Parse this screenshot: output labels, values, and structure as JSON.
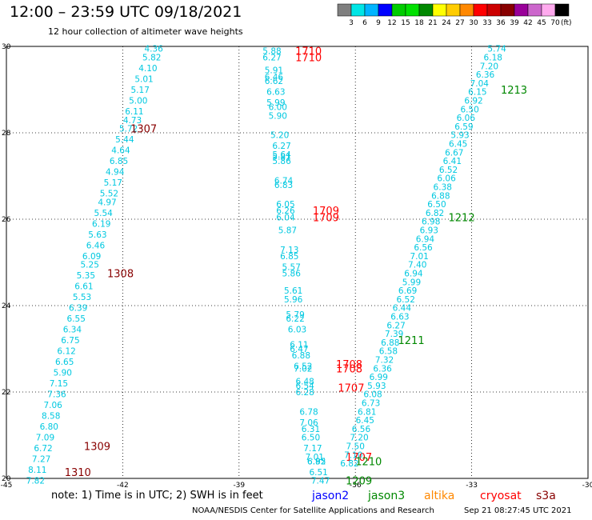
{
  "header": {
    "title": "12:00 – 23:59 UTC 09/18/2021",
    "subtitle": "12 hour collection of altimeter wave heights"
  },
  "colorbar": {
    "unit": "(ft)",
    "bins": [
      {
        "color": "#7f7f7f",
        "label": "3"
      },
      {
        "color": "#00e5e5",
        "label": "6"
      },
      {
        "color": "#00b4ff",
        "label": "9"
      },
      {
        "color": "#0000ff",
        "label": "12"
      },
      {
        "color": "#00cc00",
        "label": "15"
      },
      {
        "color": "#00e000",
        "label": "18"
      },
      {
        "color": "#008800",
        "label": "21"
      },
      {
        "color": "#ffff00",
        "label": "24"
      },
      {
        "color": "#ffcc00",
        "label": "27"
      },
      {
        "color": "#ff8800",
        "label": "30"
      },
      {
        "color": "#ff0000",
        "label": "33"
      },
      {
        "color": "#cc0000",
        "label": "36"
      },
      {
        "color": "#880000",
        "label": "39"
      },
      {
        "color": "#990099",
        "label": "42"
      },
      {
        "color": "#cc66cc",
        "label": "45"
      },
      {
        "color": "#ffaaee",
        "label": "70"
      },
      {
        "color": "#000000",
        "label": ""
      }
    ]
  },
  "footer": {
    "note": "note: 1) Time is in UTC; 2) SWH is in feet",
    "legend": [
      {
        "name": "jason2",
        "color": "#0000ff"
      },
      {
        "name": "jason3",
        "color": "#008800"
      },
      {
        "name": "altika",
        "color": "#ff8800"
      },
      {
        "name": "cryosat",
        "color": "#ff0000"
      },
      {
        "name": "s3a",
        "color": "#880000"
      }
    ],
    "credit": "NOAA/NESDIS Center for Satellite Applications and Research",
    "timestamp": "Sep 21 08:27:45 UTC 2021"
  },
  "chart_data": {
    "type": "scatter",
    "xlim": [
      -45,
      -30
    ],
    "ylim": [
      20,
      30
    ],
    "xticks": [
      "-45",
      "-42",
      "-39",
      "-36",
      "-33",
      "-30"
    ],
    "yticks": [
      "20",
      "22",
      "24",
      "26",
      "28",
      "30"
    ],
    "grid": true,
    "value_color": "#00c8e0",
    "tracks": [
      {
        "name": "s3a",
        "color": "#880000",
        "time_labels": [
          {
            "text": "1307",
            "x": -41.8,
            "y": 28.1
          },
          {
            "text": "1308",
            "x": -42.4,
            "y": 24.75
          },
          {
            "text": "1309",
            "x": -43.0,
            "y": 20.75
          },
          {
            "text": "1310",
            "x": -43.5,
            "y": 20.15
          }
        ],
        "points": [
          {
            "x": -41.2,
            "y": 29.95,
            "v": "4.36"
          },
          {
            "x": -41.25,
            "y": 29.75,
            "v": "5.82"
          },
          {
            "x": -41.35,
            "y": 29.5,
            "v": "4.10"
          },
          {
            "x": -41.45,
            "y": 29.25,
            "v": "5.01"
          },
          {
            "x": -41.55,
            "y": 29.0,
            "v": "5.17"
          },
          {
            "x": -41.6,
            "y": 28.75,
            "v": "5.00"
          },
          {
            "x": -41.7,
            "y": 28.5,
            "v": "6.11"
          },
          {
            "x": -41.75,
            "y": 28.3,
            "v": "4.73"
          },
          {
            "x": -41.85,
            "y": 28.1,
            "v": "5.72"
          },
          {
            "x": -41.95,
            "y": 27.85,
            "v": "5.44"
          },
          {
            "x": -42.05,
            "y": 27.6,
            "v": "4.64"
          },
          {
            "x": -42.1,
            "y": 27.35,
            "v": "6.85"
          },
          {
            "x": -42.2,
            "y": 27.1,
            "v": "4.94"
          },
          {
            "x": -42.25,
            "y": 26.85,
            "v": "5.17"
          },
          {
            "x": -42.35,
            "y": 26.6,
            "v": "5.52"
          },
          {
            "x": -42.4,
            "y": 26.4,
            "v": "4.97"
          },
          {
            "x": -42.5,
            "y": 26.15,
            "v": "5.54"
          },
          {
            "x": -42.55,
            "y": 25.9,
            "v": "6.19"
          },
          {
            "x": -42.65,
            "y": 25.65,
            "v": "5.63"
          },
          {
            "x": -42.7,
            "y": 25.4,
            "v": "6.46"
          },
          {
            "x": -42.8,
            "y": 25.15,
            "v": "6.09"
          },
          {
            "x": -42.85,
            "y": 24.95,
            "v": "5.25"
          },
          {
            "x": -42.95,
            "y": 24.7,
            "v": "5.35"
          },
          {
            "x": -43.0,
            "y": 24.45,
            "v": "6.61"
          },
          {
            "x": -43.05,
            "y": 24.2,
            "v": "5.53"
          },
          {
            "x": -43.15,
            "y": 23.95,
            "v": "6.39"
          },
          {
            "x": -43.2,
            "y": 23.7,
            "v": "6.55"
          },
          {
            "x": -43.3,
            "y": 23.45,
            "v": "6.34"
          },
          {
            "x": -43.35,
            "y": 23.2,
            "v": "6.75"
          },
          {
            "x": -43.45,
            "y": 22.95,
            "v": "6.12"
          },
          {
            "x": -43.5,
            "y": 22.7,
            "v": "6.65"
          },
          {
            "x": -43.55,
            "y": 22.45,
            "v": "5.90"
          },
          {
            "x": -43.65,
            "y": 22.2,
            "v": "7.15"
          },
          {
            "x": -43.7,
            "y": 21.95,
            "v": "7.36"
          },
          {
            "x": -43.8,
            "y": 21.7,
            "v": "7.06"
          },
          {
            "x": -43.85,
            "y": 21.45,
            "v": "8.58"
          },
          {
            "x": -43.9,
            "y": 21.2,
            "v": "6.80"
          },
          {
            "x": -44.0,
            "y": 20.95,
            "v": "7.09"
          },
          {
            "x": -44.05,
            "y": 20.7,
            "v": "6.72"
          },
          {
            "x": -44.1,
            "y": 20.45,
            "v": "7.27"
          },
          {
            "x": -44.2,
            "y": 20.2,
            "v": "8.11"
          },
          {
            "x": -44.25,
            "y": 19.95,
            "v": "7.82"
          }
        ]
      },
      {
        "name": "cryosat",
        "color": "#ff0000",
        "time_labels": [
          {
            "text": "1710",
            "x": -37.55,
            "y": 29.9
          },
          {
            "text": "1710",
            "x": -37.55,
            "y": 29.75
          },
          {
            "text": "1709",
            "x": -37.1,
            "y": 26.2
          },
          {
            "text": "1709",
            "x": -37.1,
            "y": 26.05
          },
          {
            "text": "1708",
            "x": -36.5,
            "y": 22.65
          },
          {
            "text": "1708",
            "x": -36.5,
            "y": 22.55
          },
          {
            "text": "1707",
            "x": -36.45,
            "y": 22.1
          },
          {
            "text": "1707",
            "x": -36.25,
            "y": 20.5
          }
        ],
        "points": [
          {
            "x": -38.15,
            "y": 29.9,
            "v": "5.88"
          },
          {
            "x": -38.15,
            "y": 29.75,
            "v": "6.27"
          },
          {
            "x": -38.1,
            "y": 29.45,
            "v": "5.91"
          },
          {
            "x": -38.1,
            "y": 29.3,
            "v": "6.46"
          },
          {
            "x": -38.1,
            "y": 29.2,
            "v": "6.62"
          },
          {
            "x": -38.05,
            "y": 28.95,
            "v": "6.63"
          },
          {
            "x": -38.05,
            "y": 28.7,
            "v": "5.99"
          },
          {
            "x": -38.0,
            "y": 28.6,
            "v": "6.00"
          },
          {
            "x": -38.0,
            "y": 28.4,
            "v": "5.90"
          },
          {
            "x": -37.95,
            "y": 27.95,
            "v": "5.20"
          },
          {
            "x": -37.9,
            "y": 27.7,
            "v": "6.27"
          },
          {
            "x": -37.9,
            "y": 27.5,
            "v": "5.64"
          },
          {
            "x": -37.9,
            "y": 27.45,
            "v": "5.81"
          },
          {
            "x": -37.9,
            "y": 27.35,
            "v": "5.86"
          },
          {
            "x": -37.85,
            "y": 26.9,
            "v": "6.74"
          },
          {
            "x": -37.85,
            "y": 26.8,
            "v": "6.83"
          },
          {
            "x": -37.8,
            "y": 26.35,
            "v": "6.05"
          },
          {
            "x": -37.8,
            "y": 26.2,
            "v": "6.26"
          },
          {
            "x": -37.8,
            "y": 26.05,
            "v": "6.04"
          },
          {
            "x": -37.75,
            "y": 25.75,
            "v": "5.87"
          },
          {
            "x": -37.7,
            "y": 25.3,
            "v": "7.13"
          },
          {
            "x": -37.7,
            "y": 25.15,
            "v": "6.85"
          },
          {
            "x": -37.65,
            "y": 24.9,
            "v": "5.57"
          },
          {
            "x": -37.65,
            "y": 24.75,
            "v": "5.86"
          },
          {
            "x": -37.6,
            "y": 24.35,
            "v": "5.61"
          },
          {
            "x": -37.6,
            "y": 24.15,
            "v": "5.96"
          },
          {
            "x": -37.55,
            "y": 23.8,
            "v": "5.79"
          },
          {
            "x": -37.55,
            "y": 23.7,
            "v": "6.22"
          },
          {
            "x": -37.5,
            "y": 23.45,
            "v": "6.03"
          },
          {
            "x": -37.45,
            "y": 23.1,
            "v": "6.11"
          },
          {
            "x": -37.45,
            "y": 23.0,
            "v": "6.47"
          },
          {
            "x": -37.4,
            "y": 22.85,
            "v": "6.88"
          },
          {
            "x": -37.35,
            "y": 22.6,
            "v": "6.52"
          },
          {
            "x": -37.35,
            "y": 22.55,
            "v": "7.02"
          },
          {
            "x": -37.3,
            "y": 22.25,
            "v": "6.48"
          },
          {
            "x": -37.3,
            "y": 22.15,
            "v": "6.54"
          },
          {
            "x": -37.3,
            "y": 22.0,
            "v": "6.28"
          },
          {
            "x": -37.2,
            "y": 21.55,
            "v": "6.78"
          },
          {
            "x": -37.2,
            "y": 21.3,
            "v": "7.06"
          },
          {
            "x": -37.15,
            "y": 21.15,
            "v": "6.31"
          },
          {
            "x": -37.15,
            "y": 20.95,
            "v": "6.50"
          },
          {
            "x": -37.1,
            "y": 20.7,
            "v": "7.17"
          },
          {
            "x": -37.05,
            "y": 20.5,
            "v": "7.01"
          },
          {
            "x": -37.0,
            "y": 20.4,
            "v": "6.92"
          },
          {
            "x": -37.0,
            "y": 20.4,
            "v": "6.85"
          },
          {
            "x": -36.95,
            "y": 20.15,
            "v": "6.51"
          },
          {
            "x": -36.9,
            "y": 19.95,
            "v": "7.47"
          }
        ]
      },
      {
        "name": "jason3",
        "color": "#008800",
        "time_labels": [
          {
            "text": "1213",
            "x": -32.25,
            "y": 29.0
          },
          {
            "text": "1212",
            "x": -33.6,
            "y": 26.05
          },
          {
            "text": "1211",
            "x": -34.9,
            "y": 23.2
          },
          {
            "text": "1210",
            "x": -36.0,
            "y": 20.4
          },
          {
            "text": "1209",
            "x": -36.25,
            "y": 19.95
          }
        ],
        "points": [
          {
            "x": -32.35,
            "y": 29.95,
            "v": "5.74"
          },
          {
            "x": -32.45,
            "y": 29.75,
            "v": "6.18"
          },
          {
            "x": -32.55,
            "y": 29.55,
            "v": "7.20"
          },
          {
            "x": -32.65,
            "y": 29.35,
            "v": "6.36"
          },
          {
            "x": -32.8,
            "y": 29.15,
            "v": "7.04"
          },
          {
            "x": -32.85,
            "y": 28.95,
            "v": "6.15"
          },
          {
            "x": -32.95,
            "y": 28.75,
            "v": "6.92"
          },
          {
            "x": -33.05,
            "y": 28.55,
            "v": "6.50"
          },
          {
            "x": -33.15,
            "y": 28.35,
            "v": "6.06"
          },
          {
            "x": -33.2,
            "y": 28.15,
            "v": "6.59"
          },
          {
            "x": -33.3,
            "y": 27.95,
            "v": "5.93"
          },
          {
            "x": -33.35,
            "y": 27.75,
            "v": "6.45"
          },
          {
            "x": -33.45,
            "y": 27.55,
            "v": "6.67"
          },
          {
            "x": -33.5,
            "y": 27.35,
            "v": "6.41"
          },
          {
            "x": -33.6,
            "y": 27.15,
            "v": "6.52"
          },
          {
            "x": -33.65,
            "y": 26.95,
            "v": "6.06"
          },
          {
            "x": -33.75,
            "y": 26.75,
            "v": "6.38"
          },
          {
            "x": -33.8,
            "y": 26.55,
            "v": "6.88"
          },
          {
            "x": -33.9,
            "y": 26.35,
            "v": "6.50"
          },
          {
            "x": -33.95,
            "y": 26.15,
            "v": "6.82"
          },
          {
            "x": -34.05,
            "y": 25.95,
            "v": "6.98"
          },
          {
            "x": -34.1,
            "y": 25.75,
            "v": "6.93"
          },
          {
            "x": -34.2,
            "y": 25.55,
            "v": "6.94"
          },
          {
            "x": -34.25,
            "y": 25.35,
            "v": "6.56"
          },
          {
            "x": -34.35,
            "y": 25.15,
            "v": "7.01"
          },
          {
            "x": -34.4,
            "y": 24.95,
            "v": "7.40"
          },
          {
            "x": -34.5,
            "y": 24.75,
            "v": "6.94"
          },
          {
            "x": -34.55,
            "y": 24.55,
            "v": "5.99"
          },
          {
            "x": -34.65,
            "y": 24.35,
            "v": "6.69"
          },
          {
            "x": -34.7,
            "y": 24.15,
            "v": "6.52"
          },
          {
            "x": -34.8,
            "y": 23.95,
            "v": "6.44"
          },
          {
            "x": -34.85,
            "y": 23.75,
            "v": "6.63"
          },
          {
            "x": -34.95,
            "y": 23.55,
            "v": "6.27"
          },
          {
            "x": -35.0,
            "y": 23.35,
            "v": "7.39"
          },
          {
            "x": -35.1,
            "y": 23.15,
            "v": "6.88"
          },
          {
            "x": -35.15,
            "y": 22.95,
            "v": "6.58"
          },
          {
            "x": -35.25,
            "y": 22.75,
            "v": "7.32"
          },
          {
            "x": -35.3,
            "y": 22.55,
            "v": "6.36"
          },
          {
            "x": -35.4,
            "y": 22.35,
            "v": "6.99"
          },
          {
            "x": -35.45,
            "y": 22.15,
            "v": "5.93"
          },
          {
            "x": -35.55,
            "y": 21.95,
            "v": "6.08"
          },
          {
            "x": -35.6,
            "y": 21.75,
            "v": "6.73"
          },
          {
            "x": -35.7,
            "y": 21.55,
            "v": "6.81"
          },
          {
            "x": -35.75,
            "y": 21.35,
            "v": "6.45"
          },
          {
            "x": -35.85,
            "y": 21.15,
            "v": "6.56"
          },
          {
            "x": -35.9,
            "y": 20.95,
            "v": "7.20"
          },
          {
            "x": -36.0,
            "y": 20.75,
            "v": "7.50"
          },
          {
            "x": -36.05,
            "y": 20.55,
            "v": "7.10"
          },
          {
            "x": -36.15,
            "y": 20.35,
            "v": "6.82"
          }
        ]
      }
    ]
  }
}
